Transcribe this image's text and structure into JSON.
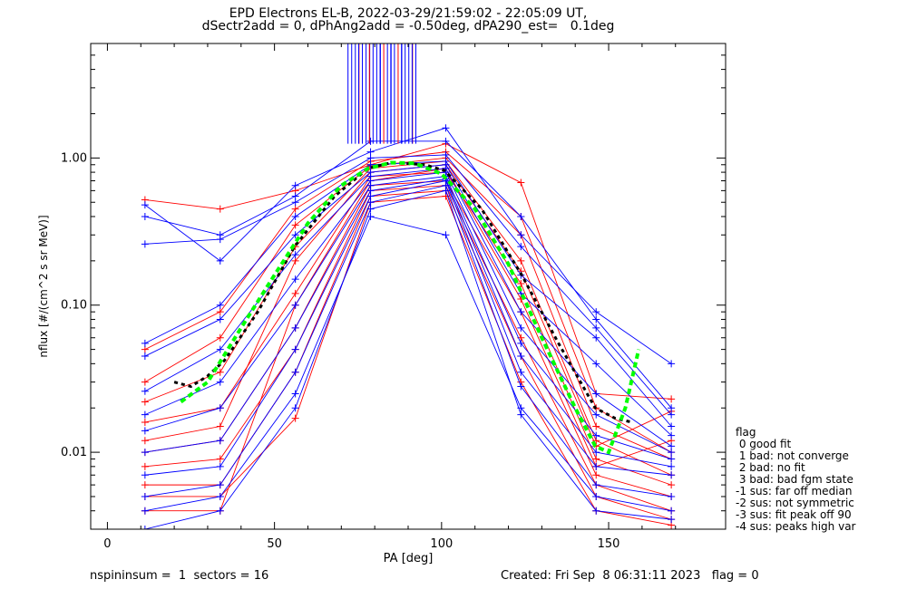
{
  "title_line1": "EPD Electrons EL-B, 2022-03-29/21:59:02 - 22:05:09 UT,",
  "title_line2": "dSectr2add = 0, dPhAng2add = -0.50deg, dPA290_est=   0.1deg",
  "footer_left": "nspininsum =  1  sectors = 16",
  "footer_right": "Created: Fri Sep  8 06:31:11 2023   flag = 0",
  "legend": {
    "title": "flag",
    "items": [
      " 0 good fit",
      " 1 bad: not converge",
      " 2 bad: no fit",
      " 3 bad: bad fgm state",
      "-1 sus: far off median",
      "-2 sus: not symmetric",
      "-3 sus: fit peak off 90",
      "-4 sus: peaks high var"
    ]
  },
  "colors": {
    "red": "#ff0000",
    "blue": "#0000ff",
    "black": "#000000",
    "green": "#00ff00"
  },
  "chart_data": {
    "type": "line",
    "title": "EPD Electrons EL-B, 2022-03-29/21:59:02 - 22:05:09 UT,",
    "xlabel": "PA [deg]",
    "ylabel": "nflux [#/(cm^2 s sr MeV)]",
    "xlim": [
      -5,
      185
    ],
    "ylim": [
      0.003,
      6
    ],
    "yscale": "log",
    "x_ticks": [
      0,
      50,
      100,
      150
    ],
    "x_tick_labels": [
      "0",
      "50",
      "100",
      "150"
    ],
    "y_ticks": [
      0.01,
      0.1,
      1.0
    ],
    "y_tick_labels": [
      "0.01",
      "0.10",
      "1.00"
    ],
    "pa_bins": [
      11.25,
      33.75,
      56.25,
      78.75,
      101.25,
      123.75,
      146.25,
      168.75
    ],
    "series": [
      {
        "color": "red",
        "values": [
          0.52,
          0.45,
          0.6,
          0.9,
          1.25,
          0.68,
          0.025,
          0.023
        ]
      },
      {
        "color": "red",
        "values": [
          0.05,
          0.09,
          0.45,
          0.95,
          1.1,
          0.4,
          0.02,
          0.01
        ]
      },
      {
        "color": "red",
        "values": [
          0.022,
          0.035,
          0.25,
          0.85,
          0.95,
          0.2,
          0.012,
          0.007
        ]
      },
      {
        "color": "red",
        "values": [
          0.016,
          0.02,
          0.12,
          0.75,
          0.8,
          0.14,
          0.009,
          0.006
        ]
      },
      {
        "color": "red",
        "values": [
          0.01,
          0.012,
          0.07,
          0.65,
          0.7,
          0.09,
          0.007,
          0.005
        ]
      },
      {
        "color": "red",
        "values": [
          0.008,
          0.009,
          0.05,
          0.6,
          0.65,
          0.06,
          0.006,
          0.004
        ]
      },
      {
        "color": "red",
        "values": [
          0.006,
          0.006,
          0.035,
          0.55,
          0.6,
          0.045,
          0.005,
          0.0035
        ]
      },
      {
        "color": "red",
        "values": [
          0.005,
          0.005,
          0.017,
          0.5,
          0.55,
          0.03,
          0.004,
          0.0032
        ]
      },
      {
        "color": "red",
        "values": [
          0.004,
          0.004,
          0.1,
          0.7,
          0.85,
          0.11,
          0.008,
          0.012
        ]
      },
      {
        "color": "red",
        "values": [
          0.012,
          0.015,
          0.2,
          0.8,
          0.9,
          0.17,
          0.011,
          0.019
        ]
      },
      {
        "color": "red",
        "values": [
          0.03,
          0.06,
          0.35,
          0.88,
          1.0,
          0.3,
          0.015,
          0.009
        ]
      },
      {
        "color": "blue",
        "values": [
          0.48,
          0.2,
          0.65,
          1.1,
          1.6,
          0.3,
          0.09,
          0.04
        ]
      },
      {
        "color": "blue",
        "values": [
          0.4,
          0.3,
          0.55,
          1.3,
          1.3,
          0.4,
          0.08,
          0.02
        ]
      },
      {
        "color": "blue",
        "values": [
          0.26,
          0.28,
          0.5,
          1.0,
          1.05,
          0.25,
          0.07,
          0.018
        ]
      },
      {
        "color": "blue",
        "values": [
          0.055,
          0.1,
          0.4,
          0.9,
          0.95,
          0.16,
          0.06,
          0.015
        ]
      },
      {
        "color": "blue",
        "values": [
          0.045,
          0.08,
          0.3,
          0.8,
          0.9,
          0.12,
          0.04,
          0.013
        ]
      },
      {
        "color": "blue",
        "values": [
          0.026,
          0.05,
          0.22,
          0.75,
          0.85,
          0.09,
          0.025,
          0.011
        ]
      },
      {
        "color": "blue",
        "values": [
          0.018,
          0.03,
          0.15,
          0.7,
          0.8,
          0.07,
          0.018,
          0.01
        ]
      },
      {
        "color": "blue",
        "values": [
          0.014,
          0.02,
          0.1,
          0.65,
          0.75,
          0.055,
          0.013,
          0.009
        ]
      },
      {
        "color": "blue",
        "values": [
          0.01,
          0.012,
          0.07,
          0.6,
          0.72,
          0.045,
          0.01,
          0.008
        ]
      },
      {
        "color": "blue",
        "values": [
          0.007,
          0.008,
          0.05,
          0.55,
          0.7,
          0.035,
          0.008,
          0.007
        ]
      },
      {
        "color": "blue",
        "values": [
          0.005,
          0.006,
          0.035,
          0.5,
          0.65,
          0.028,
          0.006,
          0.005
        ]
      },
      {
        "color": "blue",
        "values": [
          0.004,
          0.005,
          0.025,
          0.4,
          0.3,
          0.02,
          0.005,
          0.004
        ]
      },
      {
        "color": "blue",
        "values": [
          0.003,
          0.004,
          0.02,
          0.45,
          0.6,
          0.018,
          0.004,
          0.0035
        ]
      }
    ],
    "median_curve": {
      "color": "black",
      "style": "dashed",
      "x": [
        20,
        25,
        30,
        35,
        45,
        56,
        68,
        78,
        85,
        95,
        101,
        112,
        124,
        135,
        146,
        152,
        157
      ],
      "y": [
        0.03,
        0.028,
        0.033,
        0.042,
        0.09,
        0.25,
        0.55,
        0.85,
        0.93,
        0.9,
        0.82,
        0.45,
        0.16,
        0.055,
        0.02,
        0.017,
        0.016
      ]
    },
    "fit_curve": {
      "color": "green",
      "style": "dashed",
      "x": [
        22,
        30,
        40,
        50,
        60,
        70,
        78,
        85,
        92,
        100,
        110,
        120,
        130,
        140,
        146,
        150,
        155,
        159
      ],
      "y": [
        0.022,
        0.03,
        0.07,
        0.16,
        0.36,
        0.65,
        0.85,
        0.93,
        0.92,
        0.78,
        0.45,
        0.19,
        0.06,
        0.02,
        0.011,
        0.01,
        0.02,
        0.05
      ]
    }
  }
}
